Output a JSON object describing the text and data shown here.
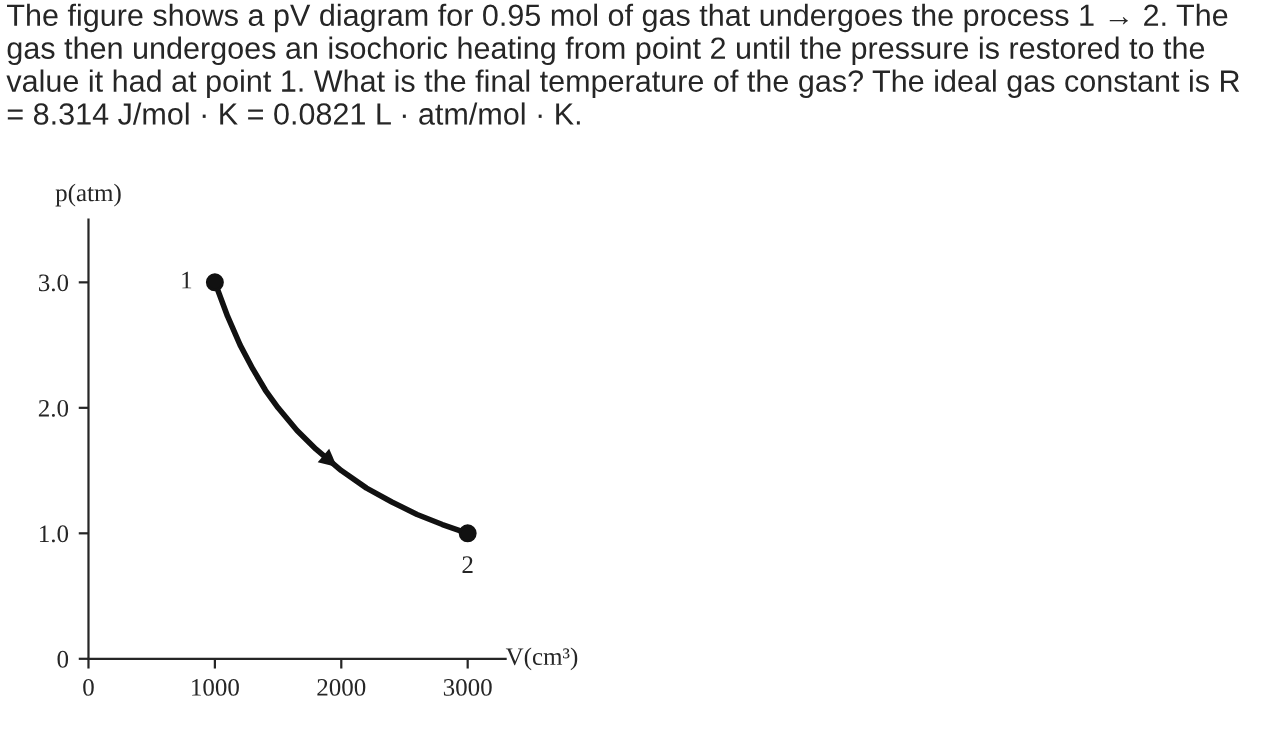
{
  "chart_data": {
    "type": "line",
    "title": "The figure shows a pV diagram for 0.95 mol of gas that undergoes the process 1 → 2. The gas then undergoes an isochoric heating from point 2 until the pressure is restored to the value it had at point 1. What is the final temperature of the gas? The ideal gas constant is R = 8.314 J/mol · K = 0.0821 L · atm/mol · K.",
    "xlabel": "V(cm³)",
    "ylabel": "p(atm)",
    "series": [
      {
        "color": "#111111",
        "marker": "none",
        "x": [
          1000,
          1100,
          1200,
          1300,
          1400,
          1500,
          1650,
          1800,
          2000,
          2200,
          2400,
          2600,
          2800,
          3000
        ],
        "values": [
          3.0,
          2.73,
          2.5,
          2.31,
          2.14,
          2.0,
          1.82,
          1.67,
          1.5,
          1.36,
          1.25,
          1.15,
          1.07,
          1.0
        ]
      },
      {
        "type": "scatter",
        "color": "#111111",
        "marker": "circle",
        "x": [
          1000,
          3000
        ],
        "values": [
          3.0,
          1.0
        ]
      }
    ],
    "annotations": [
      {
        "text": "1",
        "x": 1000,
        "y": 3.0
      },
      {
        "text": "2",
        "x": 3000,
        "y": 1.0
      }
    ],
    "xlim": [
      0,
      3300
    ],
    "xticks": [
      0,
      1000,
      2000,
      3000
    ],
    "ylim": [
      0,
      3.5
    ],
    "yticks": [
      0,
      {
        "value": 1,
        "label": "1.0"
      },
      {
        "value": 2,
        "label": "2.0"
      },
      {
        "value": 3,
        "label": "3.0"
      }
    ],
    "grid": false,
    "legend": false
  }
}
